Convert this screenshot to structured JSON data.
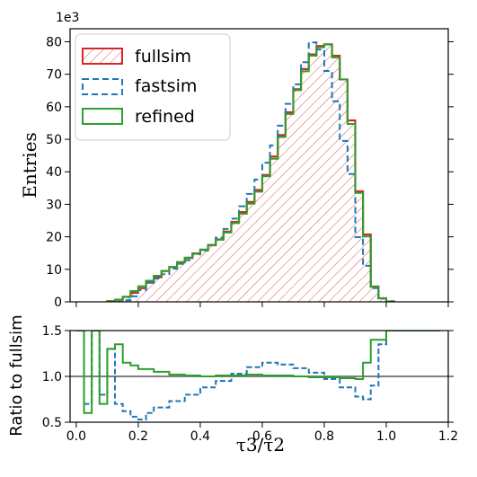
{
  "colors": {
    "fullsim": "#d62728",
    "fastsim": "#1f77b4",
    "refined": "#2ca02c",
    "hatch": "#d62728"
  },
  "chart_data": [
    {
      "type": "histogram",
      "ylabel": "Entries",
      "offset_text": "1e3",
      "xlim": [
        -0.02,
        1.2
      ],
      "ylim": [
        0,
        84
      ],
      "yticks": [
        0,
        10,
        20,
        30,
        40,
        50,
        60,
        70,
        80
      ],
      "legend": "top-left",
      "bin_width": 0.025,
      "x_start": 0.1,
      "series": [
        {
          "name": "fullsim",
          "style": "hatched",
          "values": [
            0.2,
            0.6,
            1.5,
            2.8,
            4.2,
            5.9,
            7.6,
            9.5,
            10.7,
            12.2,
            13.5,
            14.9,
            16.0,
            17.4,
            19.2,
            21.6,
            24.6,
            27.6,
            30.7,
            34.4,
            39.0,
            44.7,
            51.3,
            58.3,
            65.4,
            71.6,
            76.1,
            78.7,
            79.2,
            75.7,
            68.4,
            55.8,
            34.0,
            20.7,
            4.7,
            1.1,
            0.1
          ]
        },
        {
          "name": "fastsim",
          "style": "dashed",
          "values": [
            0.0,
            0.0,
            0.5,
            1.7,
            3.6,
            5.9,
            7.2,
            8.5,
            10.2,
            11.7,
            12.8,
            14.6,
            15.8,
            17.5,
            19.8,
            22.4,
            25.6,
            29.4,
            33.2,
            37.6,
            42.8,
            48.1,
            54.2,
            60.9,
            66.9,
            73.7,
            79.8,
            77.6,
            71.0,
            61.7,
            49.5,
            39.3,
            19.9,
            11.1,
            4.2,
            1.0,
            0.2
          ]
        },
        {
          "name": "refined",
          "style": "solid",
          "values": [
            0.2,
            0.7,
            1.6,
            3.3,
            4.8,
            6.5,
            8.0,
            9.5,
            10.7,
            12.1,
            13.6,
            14.8,
            16.1,
            17.5,
            19.1,
            21.3,
            24.2,
            27.1,
            30.2,
            33.9,
            38.6,
            44.0,
            50.7,
            57.8,
            65.1,
            70.9,
            75.7,
            78.3,
            79.2,
            75.2,
            68.4,
            54.7,
            33.5,
            20.1,
            4.6,
            1.1,
            0.1
          ]
        }
      ]
    },
    {
      "type": "step-ratio",
      "ylabel": "Ratio to fullsim",
      "xlabel": "τ3/τ2",
      "xlim": [
        -0.02,
        1.2
      ],
      "ylim": [
        0.5,
        1.5
      ],
      "xticks": [
        0.0,
        0.2,
        0.4,
        0.6,
        0.8,
        1.0,
        1.2
      ],
      "yticks": [
        0.5,
        1.0,
        1.5
      ],
      "reference_line": 1.0,
      "series": [
        {
          "name": "fastsim",
          "x": [
            0.0,
            0.025,
            0.05,
            0.075,
            0.1,
            0.125,
            0.15,
            0.175,
            0.2,
            0.225,
            0.25,
            0.3,
            0.35,
            0.4,
            0.45,
            0.5,
            0.55,
            0.6,
            0.65,
            0.7,
            0.75,
            0.8,
            0.85,
            0.9,
            0.925,
            0.95,
            0.975,
            1.0
          ],
          "y": [
            1.5,
            0.7,
            1.5,
            0.8,
            1.3,
            0.7,
            0.62,
            0.56,
            0.53,
            0.6,
            0.66,
            0.73,
            0.8,
            0.88,
            0.95,
            1.03,
            1.1,
            1.15,
            1.13,
            1.09,
            1.04,
            0.97,
            0.88,
            0.78,
            0.75,
            0.9,
            1.35,
            1.5
          ]
        },
        {
          "name": "refined",
          "x": [
            0.0,
            0.025,
            0.05,
            0.075,
            0.1,
            0.125,
            0.15,
            0.175,
            0.2,
            0.25,
            0.3,
            0.35,
            0.4,
            0.45,
            0.5,
            0.55,
            0.6,
            0.65,
            0.7,
            0.75,
            0.8,
            0.85,
            0.9,
            0.925,
            0.95,
            1.0,
            1.05,
            1.1,
            1.15
          ],
          "y": [
            1.5,
            0.6,
            1.5,
            0.7,
            1.3,
            1.35,
            1.15,
            1.12,
            1.08,
            1.05,
            1.02,
            1.01,
            1.0,
            1.01,
            1.01,
            1.02,
            1.01,
            1.01,
            1.0,
            0.99,
            0.99,
            0.98,
            0.97,
            1.15,
            1.4,
            1.5,
            1.5,
            1.5,
            1.5
          ]
        }
      ]
    }
  ]
}
